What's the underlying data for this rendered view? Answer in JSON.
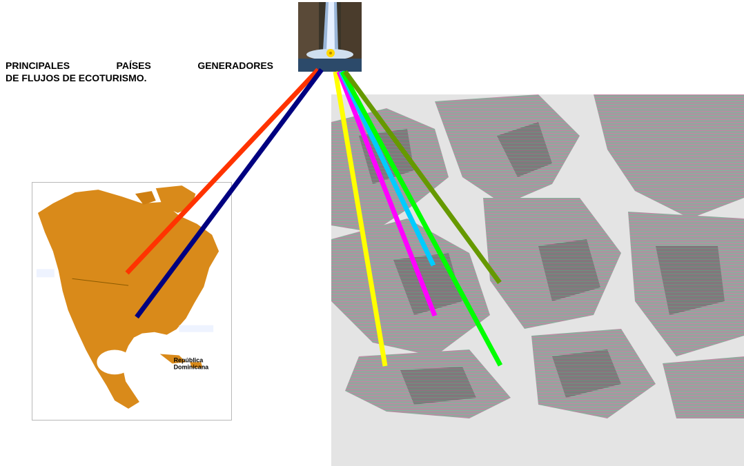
{
  "heading": {
    "line1": "PRINCIPALES PAÍSES GENERADORES",
    "line2": "DE FLUJOS DE ECOTURISMO."
  },
  "north_america_map": {
    "labels": {
      "republica_dominicana_1": "República",
      "republica_dominicana_2": "Dominicana"
    }
  },
  "colors": {
    "red": "#ff3300",
    "navy": "#000080",
    "yellow": "#ffff00",
    "magenta": "#ff00ff",
    "cyan": "#00ccff",
    "green": "#00ff00",
    "olive": "#669900",
    "continent": "#d98a1a",
    "ocean": "#e8e8e8"
  }
}
